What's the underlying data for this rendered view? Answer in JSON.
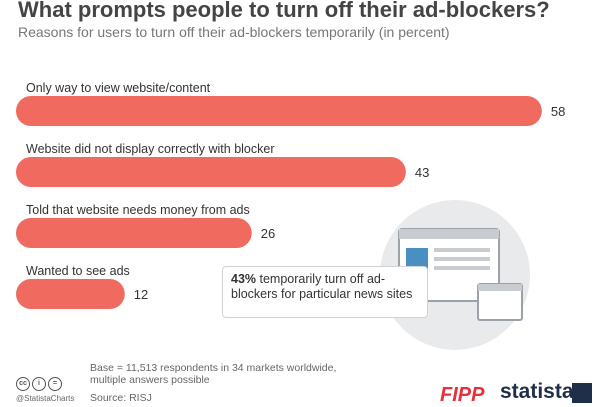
{
  "header": {
    "title": "What prompts people to turn off their ad-blockers?",
    "subtitle": "Reasons for users to turn off their ad-blockers temporarily (in percent)"
  },
  "callout": {
    "highlight": "43%",
    "text": " temporarily turn off ad-blockers for particular news sites"
  },
  "footer": {
    "note": "Base = 11,513 respondents in 34 markets worldwide, multiple answers possible",
    "source": "Source: RISJ",
    "handle": "@StatistaCharts",
    "logo_fipp": "FIPP",
    "logo_statista": "statista"
  },
  "colors": {
    "bar": "#f06a60",
    "text": "#333333",
    "circle": "#e9eaec"
  },
  "chart_data": {
    "type": "bar",
    "orientation": "horizontal",
    "title": "What prompts people to turn off their ad-blockers?",
    "subtitle": "Reasons for users to turn off their ad-blockers temporarily (in percent)",
    "categories": [
      "Only way to view website/content",
      "Website did not display correctly with blocker",
      "Told that website needs money from ads",
      "Wanted to see ads"
    ],
    "values": [
      58,
      43,
      26,
      12
    ],
    "xlim": [
      0,
      60
    ],
    "grid": false,
    "data_labels": true
  }
}
